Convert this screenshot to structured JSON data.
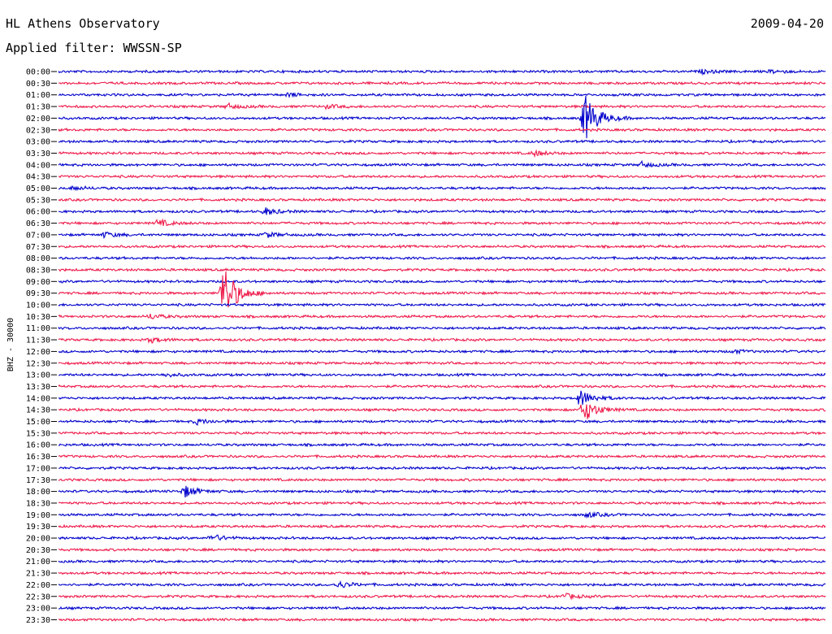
{
  "header": {
    "title": "HL Athens Observatory",
    "filter": "Applied filter: WWSSN-SP",
    "date": "2009-04-20"
  },
  "chart_data": {
    "type": "line",
    "title": "HL Athens Observatory",
    "ylabel": "BHZ - 30000",
    "colors": [
      "#0000cc",
      "#ee1a4a"
    ],
    "rows": [
      {
        "label": "00:00",
        "events": [
          {
            "pos": 0.84,
            "amp": 2
          },
          {
            "pos": 0.93,
            "amp": 2
          }
        ]
      },
      {
        "label": "00:30",
        "events": []
      },
      {
        "label": "01:00",
        "events": [
          {
            "pos": 0.3,
            "amp": 2
          }
        ]
      },
      {
        "label": "01:30",
        "events": [
          {
            "pos": 0.22,
            "amp": 3
          },
          {
            "pos": 0.35,
            "amp": 2
          }
        ]
      },
      {
        "label": "02:00",
        "events": [
          {
            "pos": 0.686,
            "amp": 30
          }
        ]
      },
      {
        "label": "02:30",
        "events": []
      },
      {
        "label": "03:00",
        "events": []
      },
      {
        "label": "03:30",
        "events": [
          {
            "pos": 0.62,
            "amp": 3
          }
        ]
      },
      {
        "label": "04:00",
        "events": [
          {
            "pos": 0.76,
            "amp": 3
          }
        ]
      },
      {
        "label": "04:30",
        "events": []
      },
      {
        "label": "05:00",
        "events": [
          {
            "pos": 0.02,
            "amp": 2
          }
        ]
      },
      {
        "label": "05:30",
        "events": []
      },
      {
        "label": "06:00",
        "events": [
          {
            "pos": 0.27,
            "amp": 4
          }
        ]
      },
      {
        "label": "06:30",
        "events": [
          {
            "pos": 0.13,
            "amp": 4
          }
        ]
      },
      {
        "label": "07:00",
        "events": [
          {
            "pos": 0.06,
            "amp": 3
          },
          {
            "pos": 0.27,
            "amp": 3
          }
        ]
      },
      {
        "label": "07:30",
        "events": []
      },
      {
        "label": "08:00",
        "events": []
      },
      {
        "label": "08:30",
        "events": []
      },
      {
        "label": "09:00",
        "events": []
      },
      {
        "label": "09:30",
        "events": [
          {
            "pos": 0.215,
            "amp": 36
          }
        ]
      },
      {
        "label": "10:00",
        "events": []
      },
      {
        "label": "10:30",
        "events": [
          {
            "pos": 0.12,
            "amp": 3
          }
        ]
      },
      {
        "label": "11:00",
        "events": []
      },
      {
        "label": "11:30",
        "events": [
          {
            "pos": 0.12,
            "amp": 3
          }
        ]
      },
      {
        "label": "12:00",
        "events": [
          {
            "pos": 0.88,
            "amp": 2
          }
        ]
      },
      {
        "label": "12:30",
        "events": []
      },
      {
        "label": "13:00",
        "events": [
          {
            "pos": 0.14,
            "amp": 2
          }
        ]
      },
      {
        "label": "13:30",
        "events": []
      },
      {
        "label": "14:00",
        "events": [
          {
            "pos": 0.68,
            "amp": 10
          }
        ]
      },
      {
        "label": "14:30",
        "events": [
          {
            "pos": 0.685,
            "amp": 14
          }
        ]
      },
      {
        "label": "15:00",
        "events": [
          {
            "pos": 0.18,
            "amp": 3
          }
        ]
      },
      {
        "label": "15:30",
        "events": []
      },
      {
        "label": "16:00",
        "events": []
      },
      {
        "label": "16:30",
        "events": []
      },
      {
        "label": "17:00",
        "events": []
      },
      {
        "label": "17:30",
        "events": []
      },
      {
        "label": "18:00",
        "events": [
          {
            "pos": 0.165,
            "amp": 7
          }
        ]
      },
      {
        "label": "18:30",
        "events": []
      },
      {
        "label": "19:00",
        "events": [
          {
            "pos": 0.69,
            "amp": 3
          }
        ]
      },
      {
        "label": "19:30",
        "events": []
      },
      {
        "label": "20:00",
        "events": [
          {
            "pos": 0.2,
            "amp": 4
          }
        ]
      },
      {
        "label": "20:30",
        "events": []
      },
      {
        "label": "21:00",
        "events": []
      },
      {
        "label": "21:30",
        "events": []
      },
      {
        "label": "22:00",
        "events": [
          {
            "pos": 0.365,
            "amp": 4
          }
        ]
      },
      {
        "label": "22:30",
        "events": [
          {
            "pos": 0.66,
            "amp": 3
          }
        ]
      },
      {
        "label": "23:00",
        "events": []
      },
      {
        "label": "23:30",
        "events": []
      }
    ]
  }
}
